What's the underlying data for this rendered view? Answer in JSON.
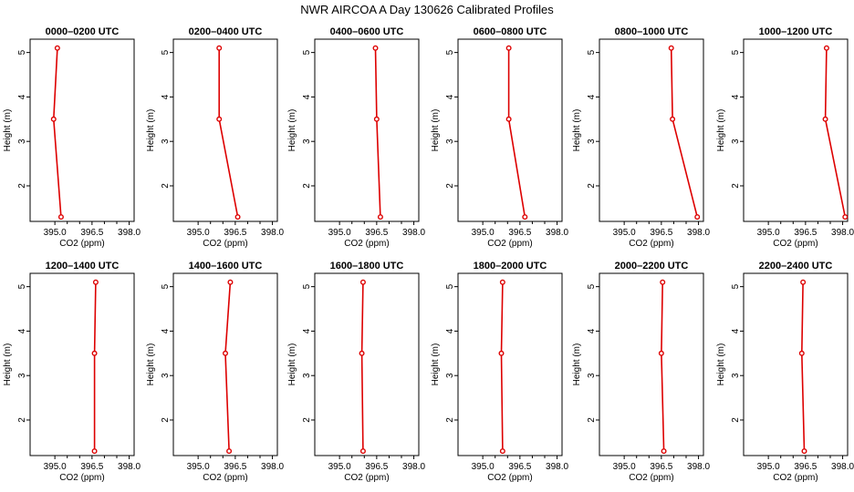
{
  "title": "NWR AIRCOA A  Day 130626  Calibrated Profiles",
  "colors": {
    "profile": "#dd0000",
    "axis": "#000000",
    "background": "#ffffff"
  },
  "chart_data": {
    "type": "line",
    "xlabel": "CO2 (ppm)",
    "ylabel": "Height (m)",
    "xlim": [
      394.0,
      398.2
    ],
    "ylim": [
      1.2,
      5.3
    ],
    "xticks": [
      395.0,
      396.5,
      398.0
    ],
    "xtick_labels": [
      "395.0",
      "396.5",
      "398.0"
    ],
    "xminor": [
      395.5,
      396.0,
      397.0,
      397.5
    ],
    "yticks": [
      2,
      3,
      4,
      5
    ],
    "ytick_labels": [
      "2",
      "3",
      "4",
      "5"
    ],
    "heights": [
      1.3,
      3.5,
      5.1
    ],
    "panels": [
      {
        "title": "0000–0200 UTC",
        "co2": [
          395.25,
          394.95,
          395.1
        ]
      },
      {
        "title": "0200–0400 UTC",
        "co2": [
          396.6,
          395.85,
          395.85
        ]
      },
      {
        "title": "0400–0600 UTC",
        "co2": [
          396.65,
          396.5,
          396.45
        ]
      },
      {
        "title": "0600–0800 UTC",
        "co2": [
          396.7,
          396.05,
          396.05
        ]
      },
      {
        "title": "0800–1000 UTC",
        "co2": [
          397.95,
          396.95,
          396.9
        ]
      },
      {
        "title": "1000–1200 UTC",
        "co2": [
          398.1,
          397.3,
          397.35
        ]
      },
      {
        "title": "1200–1400 UTC",
        "co2": [
          396.6,
          396.6,
          396.65
        ]
      },
      {
        "title": "1400–1600 UTC",
        "co2": [
          396.25,
          396.1,
          396.3
        ]
      },
      {
        "title": "1600–1800 UTC",
        "co2": [
          395.95,
          395.9,
          395.95
        ]
      },
      {
        "title": "1800–2000 UTC",
        "co2": [
          395.8,
          395.75,
          395.8
        ]
      },
      {
        "title": "2000–2200 UTC",
        "co2": [
          396.6,
          396.5,
          396.55
        ]
      },
      {
        "title": "2200–2400 UTC",
        "co2": [
          396.45,
          396.35,
          396.4
        ]
      }
    ]
  }
}
